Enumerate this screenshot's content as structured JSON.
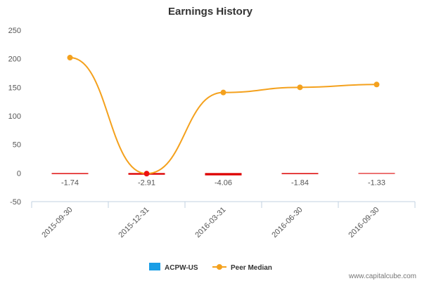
{
  "chart_data": {
    "type": "line",
    "title": "Earnings History",
    "categories": [
      "2015-09-30",
      "2015-12-31",
      "2016-03-31",
      "2016-06-30",
      "2016-09-30"
    ],
    "ylim": [
      -50,
      250
    ],
    "yticks": [
      250,
      200,
      150,
      100,
      50,
      0,
      -50
    ],
    "series": [
      {
        "name": "ACPW-US",
        "type": "bar",
        "values": [
          -1.74,
          -2.91,
          -4.06,
          -1.84,
          -1.33
        ],
        "labels": [
          "-1.74",
          "-2.91",
          "-4.06",
          "-1.84",
          "-1.33"
        ],
        "color": "#1a9ee6",
        "mark_color": "#dd0000"
      },
      {
        "name": "Peer Median",
        "type": "line",
        "values": [
          202,
          -1,
          141,
          150,
          155
        ],
        "color": "#f4a11d",
        "highlight_color": "#ee1111"
      }
    ],
    "legend": [
      "ACPW-US",
      "Peer Median"
    ],
    "legend_position": "bottom-center",
    "grid": false
  },
  "watermark": "www.capitalcube.com"
}
